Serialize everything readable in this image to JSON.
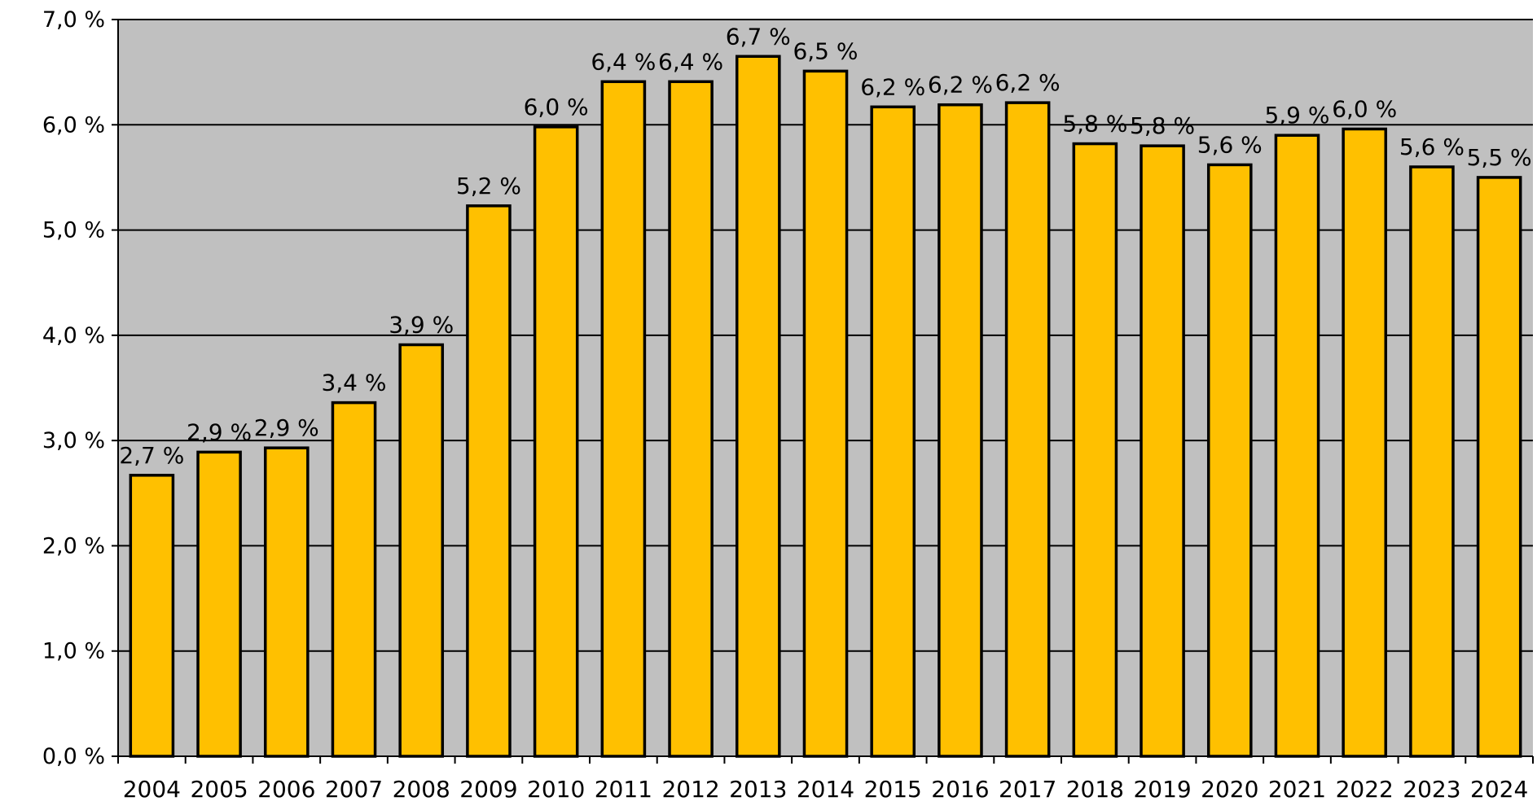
{
  "chart_data": {
    "type": "bar",
    "title": "",
    "xlabel": "",
    "ylabel": "",
    "categories": [
      "2004",
      "2005",
      "2006",
      "2007",
      "2008",
      "2009",
      "2010",
      "2011",
      "2012",
      "2013",
      "2014",
      "2015",
      "2016",
      "2017",
      "2018",
      "2019",
      "2020",
      "2021",
      "2022",
      "2023",
      "2024"
    ],
    "values": [
      2.67,
      2.89,
      2.93,
      3.36,
      3.91,
      5.23,
      5.98,
      6.41,
      6.41,
      6.65,
      6.51,
      6.17,
      6.19,
      6.21,
      5.82,
      5.8,
      5.62,
      5.9,
      5.96,
      5.6,
      5.5
    ],
    "data_labels": [
      "2,7 %",
      "2,9 %",
      "2,9 %",
      "3,4 %",
      "3,9 %",
      "5,2 %",
      "6,0 %",
      "6,4 %",
      "6,4 %",
      "6,7 %",
      "6,5 %",
      "6,2 %",
      "6,2 %",
      "6,2 %",
      "5,8 %",
      "5,8 %",
      "5,6 %",
      "5,9 %",
      "6,0 %",
      "5,6 %",
      "5,5 %"
    ],
    "ylim": [
      0,
      7
    ],
    "yticks": [
      0,
      1,
      2,
      3,
      4,
      5,
      6,
      7
    ],
    "ytick_labels": [
      "0,0 %",
      "1,0 %",
      "2,0 %",
      "3,0 %",
      "4,0 %",
      "5,0 %",
      "6,0 %",
      "7,0 %"
    ],
    "grid": true,
    "legend": "none",
    "colors": {
      "bar": "#FFC000",
      "bar_outline": "#000000",
      "plot_background": "#C0C0C0",
      "gridline": "#000000"
    }
  }
}
